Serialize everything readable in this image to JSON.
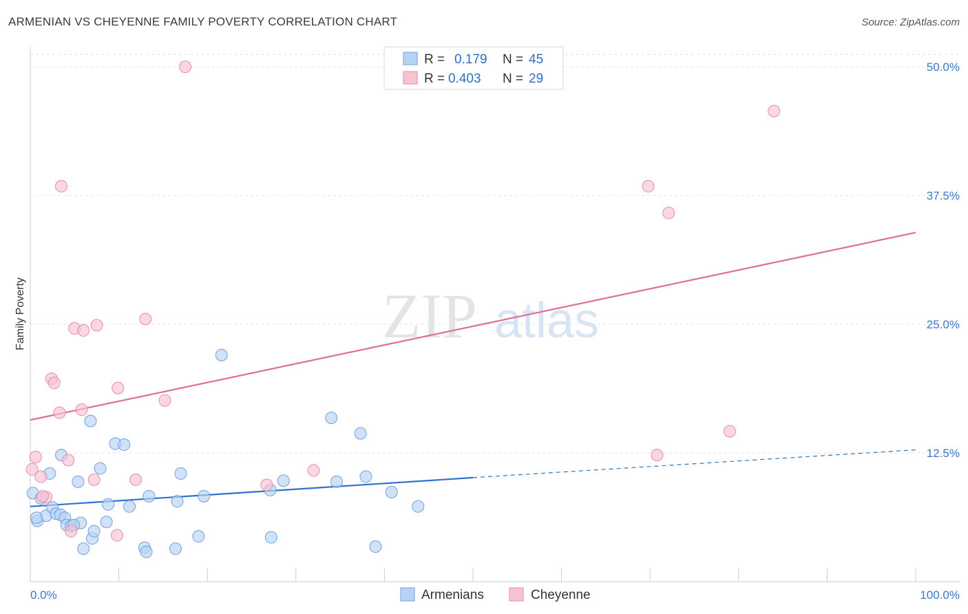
{
  "title": "ARMENIAN VS CHEYENNE FAMILY POVERTY CORRELATION CHART",
  "source": "Source: ZipAtlas.com",
  "watermark": {
    "zip": "ZIP",
    "atlas": "atlas"
  },
  "chart_data": {
    "type": "scatter",
    "title": "ARMENIAN VS CHEYENNE FAMILY POVERTY CORRELATION CHART",
    "xlabel": "",
    "ylabel": "Family Poverty",
    "xlim": [
      0,
      100
    ],
    "ylim": [
      0,
      50
    ],
    "x_tick_labels": [
      "0.0%",
      "100.0%"
    ],
    "y_ticks": [
      12.5,
      25.0,
      37.5,
      50.0
    ],
    "y_tick_labels": [
      "12.5%",
      "25.0%",
      "37.5%",
      "50.0%"
    ],
    "grid": true,
    "legend": {
      "position": "top-center",
      "entries": [
        {
          "r_label": "R =",
          "r_value": "0.179",
          "n_label": "N =",
          "n_value": "45"
        },
        {
          "r_label": "R =",
          "r_value": "0.403",
          "n_label": "N =",
          "n_value": "29"
        }
      ]
    },
    "series": [
      {
        "name": "Armenians",
        "color": "#6fa0e0",
        "fill": "#b8d2f3",
        "line_color": "#2e72cc",
        "trend": {
          "x0": 0,
          "y0": 7.3,
          "x1": 50,
          "y1": 10.1,
          "dash_to_x": 100,
          "dash_to_y": 12.8
        },
        "points": [
          [
            0.3,
            8.6
          ],
          [
            0.8,
            5.9
          ],
          [
            1.2,
            8.1
          ],
          [
            1.8,
            6.4
          ],
          [
            2.2,
            10.5
          ],
          [
            2.5,
            7.2
          ],
          [
            2.9,
            6.6
          ],
          [
            3.4,
            6.5
          ],
          [
            3.5,
            12.3
          ],
          [
            3.9,
            6.2
          ],
          [
            4.1,
            5.5
          ],
          [
            4.6,
            5.4
          ],
          [
            5.4,
            9.7
          ],
          [
            5.7,
            5.7
          ],
          [
            6.0,
            3.2
          ],
          [
            6.8,
            15.6
          ],
          [
            7.0,
            4.2
          ],
          [
            7.2,
            4.9
          ],
          [
            7.9,
            11.0
          ],
          [
            8.6,
            5.8
          ],
          [
            8.8,
            7.5
          ],
          [
            9.6,
            13.4
          ],
          [
            10.6,
            13.3
          ],
          [
            11.2,
            7.3
          ],
          [
            12.9,
            3.3
          ],
          [
            13.1,
            2.9
          ],
          [
            13.4,
            8.3
          ],
          [
            16.4,
            3.2
          ],
          [
            16.6,
            7.8
          ],
          [
            17.0,
            10.5
          ],
          [
            19.0,
            4.4
          ],
          [
            19.6,
            8.3
          ],
          [
            21.6,
            22.0
          ],
          [
            27.1,
            8.9
          ],
          [
            27.2,
            4.3
          ],
          [
            28.6,
            9.8
          ],
          [
            34.0,
            15.9
          ],
          [
            34.6,
            9.7
          ],
          [
            37.9,
            10.2
          ],
          [
            37.3,
            14.4
          ],
          [
            39.0,
            3.4
          ],
          [
            40.8,
            8.7
          ],
          [
            43.8,
            7.3
          ],
          [
            4.9,
            5.5
          ],
          [
            0.7,
            6.2
          ]
        ]
      },
      {
        "name": "Cheyenne",
        "color": "#e98aa7",
        "fill": "#f7c3d3",
        "line_color": "#e06e94",
        "trend": {
          "x0": 0,
          "y0": 15.7,
          "x1": 100,
          "y1": 33.9
        },
        "points": [
          [
            0.2,
            10.9
          ],
          [
            0.6,
            12.1
          ],
          [
            1.2,
            10.2
          ],
          [
            1.8,
            8.2
          ],
          [
            2.4,
            19.7
          ],
          [
            2.7,
            19.3
          ],
          [
            3.3,
            16.4
          ],
          [
            3.5,
            38.4
          ],
          [
            4.3,
            11.8
          ],
          [
            4.6,
            4.9
          ],
          [
            5.0,
            24.6
          ],
          [
            5.8,
            16.7
          ],
          [
            6.0,
            24.4
          ],
          [
            7.2,
            9.9
          ],
          [
            7.5,
            24.9
          ],
          [
            9.8,
            4.5
          ],
          [
            9.9,
            18.8
          ],
          [
            11.9,
            9.9
          ],
          [
            13.0,
            25.5
          ],
          [
            15.2,
            17.6
          ],
          [
            17.5,
            50.0
          ],
          [
            26.7,
            9.4
          ],
          [
            32.0,
            10.8
          ],
          [
            69.8,
            38.4
          ],
          [
            70.8,
            12.3
          ],
          [
            72.1,
            35.8
          ],
          [
            79.0,
            14.6
          ],
          [
            84.0,
            45.7
          ],
          [
            1.4,
            8.3
          ]
        ]
      }
    ]
  }
}
